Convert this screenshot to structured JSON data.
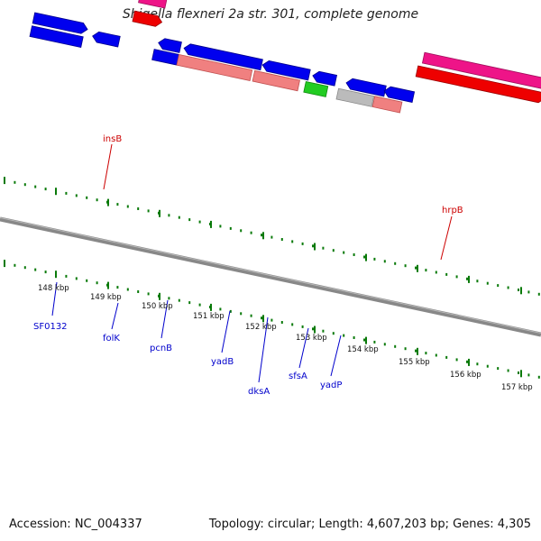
{
  "title": "Shigella flexneri 2a str. 301, complete genome",
  "footer": {
    "accession": "Accession: NC_004337",
    "summary": "Topology: circular; Length: 4,607,203 bp; Genes: 4,305"
  },
  "tick_labels": [
    "148 kbp",
    "149 kbp",
    "150 kbp",
    "151 kbp",
    "152 kbp",
    "153 kbp",
    "154 kbp",
    "155 kbp",
    "156 kbp",
    "157 kbp"
  ],
  "gene_labels_top": [
    "insB",
    "hrpB"
  ],
  "gene_labels_bottom": [
    "SF0132",
    "folK",
    "pcnB",
    "yadB",
    "dksA",
    "sfsA",
    "yadP"
  ],
  "colors": {
    "forward_cds": "#0000ee",
    "is_element": "#ee1488",
    "red_cds": "#ee0000",
    "pink": "#f08080",
    "green": "#22cc22",
    "grey": "#bbbbbb",
    "olive": "#6b8e23",
    "tick": "#0a7a0a",
    "backbone": "#888888",
    "label_blue": "#0000cc",
    "label_red": "#cc0000"
  }
}
